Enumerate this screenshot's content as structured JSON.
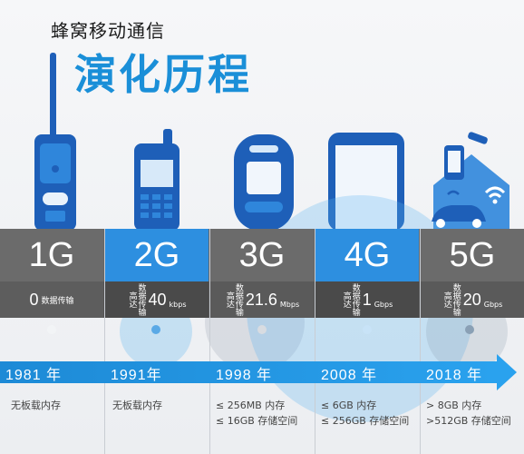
{
  "title": {
    "line1": "蜂窝移动通信",
    "line2": "演化历程"
  },
  "generations": [
    {
      "gen": "1G",
      "pre": "",
      "speed": "0",
      "label": "数据传输",
      "unit": "",
      "year": "1981 年",
      "memory": [
        "无板载内存"
      ]
    },
    {
      "gen": "2G",
      "pre": "数据传输 高达",
      "speed": "40",
      "label": "",
      "unit": "kbps",
      "year": "1991年",
      "memory": [
        "无板载内存"
      ]
    },
    {
      "gen": "3G",
      "pre": "数据传输 高达",
      "speed": "21.6",
      "label": "",
      "unit": "Mbps",
      "year": "1998 年",
      "memory": [
        "≤ 256MB 内存",
        "≤ 16GB 存储空间"
      ]
    },
    {
      "gen": "4G",
      "pre": "数据传输 高达",
      "speed": "1",
      "label": "",
      "unit": "Gbps",
      "year": "2008 年",
      "memory": [
        "≤ 6GB 内存",
        "≤ 256GB 存储空间"
      ]
    },
    {
      "gen": "5G",
      "pre": "数据传输 高达",
      "speed": "20",
      "label": "",
      "unit": "Gbps",
      "year": "2018 年",
      "memory": [
        "> 8GB 内存",
        ">512GB 存储空间"
      ]
    }
  ],
  "colors": {
    "blue": "#2d8fe0",
    "dark_blue": "#1e5fb8",
    "band_gray": "#6b6b6b"
  }
}
